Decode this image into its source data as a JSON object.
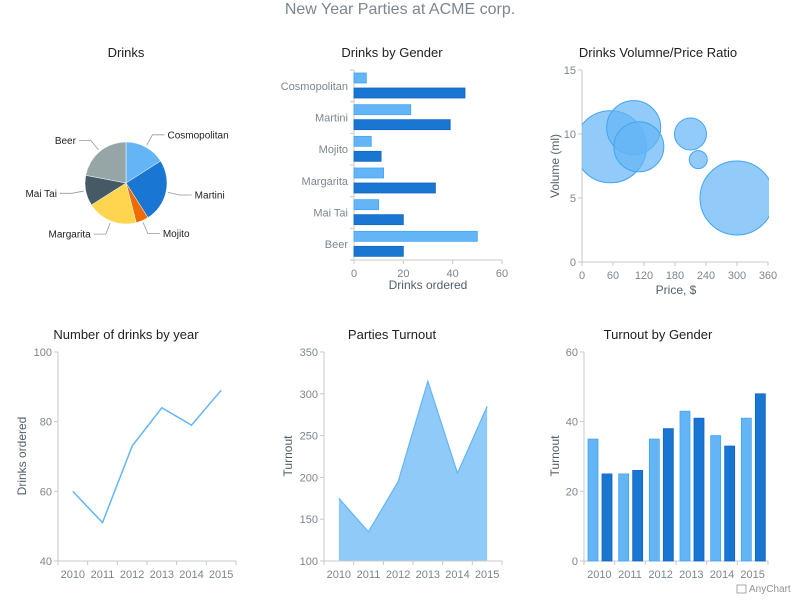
{
  "page": {
    "title": "New Year Parties at ACME corp.",
    "credits": "AnyChart"
  },
  "colors": {
    "blue_light": "#64b5f6",
    "blue_dark": "#1976d2",
    "blue_fill": "#90caf9",
    "orange": "#ef6c00",
    "yellow": "#ffd54f",
    "slate": "#455a64",
    "grey": "#96a6a6"
  },
  "chart_data": [
    {
      "id": "drinks",
      "type": "pie",
      "title": "Drinks",
      "slices": [
        {
          "label": "Cosmopolitan",
          "value": 16,
          "color": "#64b5f6"
        },
        {
          "label": "Martini",
          "value": 25,
          "color": "#1976d2"
        },
        {
          "label": "Mojito",
          "value": 5,
          "color": "#ef6c00"
        },
        {
          "label": "Margarita",
          "value": 20,
          "color": "#ffd54f"
        },
        {
          "label": "Mai Tai",
          "value": 12,
          "color": "#455a64"
        },
        {
          "label": "Beer",
          "value": 22,
          "color": "#96a6a6"
        }
      ]
    },
    {
      "id": "drinks-by-gender",
      "type": "bar",
      "orientation": "horizontal",
      "title": "Drinks by Gender",
      "categories": [
        "Cosmopolitan",
        "Martini",
        "Mojito",
        "Margarita",
        "Mai Tai",
        "Beer"
      ],
      "series": [
        {
          "values": [
            5,
            23,
            7,
            12,
            10,
            50
          ],
          "color": "#64b5f6"
        },
        {
          "values": [
            45,
            39,
            11,
            33,
            20,
            20
          ],
          "color": "#1976d2"
        }
      ],
      "xlabel": "Drinks ordered",
      "xlim": [
        0,
        60
      ],
      "xticks": [
        0,
        20,
        40,
        60
      ]
    },
    {
      "id": "volume-price",
      "type": "scatter",
      "subtype": "bubble",
      "title": "Drinks Volumne/Price Ratio",
      "xlabel": "Price, $",
      "ylabel": "Volume (ml)",
      "xlim": [
        0,
        360
      ],
      "ylim": [
        0,
        15
      ],
      "xticks": [
        0,
        60,
        120,
        180,
        240,
        300,
        360
      ],
      "yticks": [
        0,
        5,
        10,
        15
      ],
      "points": [
        {
          "x": 55,
          "y": 9,
          "size": 36
        },
        {
          "x": 100,
          "y": 10.5,
          "size": 27
        },
        {
          "x": 110,
          "y": 9,
          "size": 25
        },
        {
          "x": 210,
          "y": 10,
          "size": 16
        },
        {
          "x": 225,
          "y": 8,
          "size": 9
        },
        {
          "x": 300,
          "y": 5,
          "size": 37
        }
      ]
    },
    {
      "id": "drinks-by-year",
      "type": "line",
      "title": "Number of drinks by year",
      "ylabel": "Drinks ordered",
      "ylim": [
        40,
        100
      ],
      "yticks": [
        40,
        60,
        80,
        100
      ],
      "categories": [
        "2010",
        "2011",
        "2012",
        "2013",
        "2014",
        "2015"
      ],
      "series": [
        {
          "values": [
            60,
            51,
            73,
            84,
            79,
            89
          ],
          "color": "#64b5f6"
        }
      ]
    },
    {
      "id": "parties-turnout",
      "type": "area",
      "title": "Parties Turnout",
      "ylabel": "Turnout",
      "ylim": [
        100,
        350
      ],
      "yticks": [
        100,
        150,
        200,
        250,
        300,
        350
      ],
      "categories": [
        "2010",
        "2011",
        "2012",
        "2013",
        "2014",
        "2015"
      ],
      "series": [
        {
          "values": [
            175,
            135,
            195,
            315,
            205,
            285
          ],
          "color": "#90caf9"
        }
      ]
    },
    {
      "id": "turnout-by-gender",
      "type": "bar",
      "title": "Turnout by Gender",
      "ylabel": "Turnout",
      "ylim": [
        0,
        60
      ],
      "yticks": [
        0,
        20,
        40,
        60
      ],
      "categories": [
        "2010",
        "2011",
        "2012",
        "2013",
        "2014",
        "2015"
      ],
      "series": [
        {
          "values": [
            35,
            25,
            35,
            43,
            36,
            41
          ],
          "color": "#64b5f6"
        },
        {
          "values": [
            25,
            26,
            38,
            41,
            33,
            48
          ],
          "color": "#1976d2"
        }
      ]
    }
  ]
}
